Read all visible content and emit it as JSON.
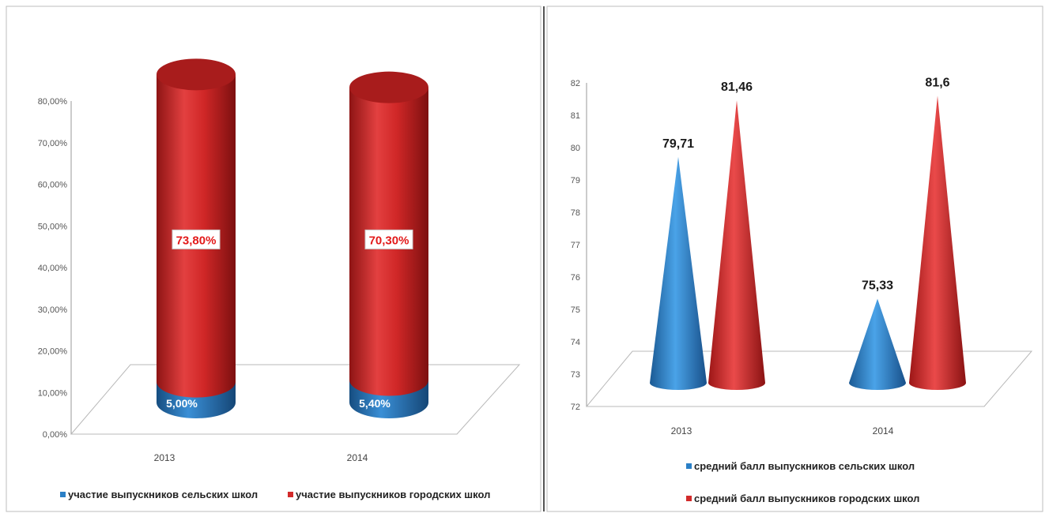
{
  "colors": {
    "rural": "#2a7fc6",
    "urban": "#d22a2a"
  },
  "chart_data": [
    {
      "type": "bar",
      "style": "3d-cylinder",
      "categories": [
        "2013",
        "2014"
      ],
      "ylim": [
        0,
        0.8
      ],
      "yticks": [
        "0,00%",
        "10,00%",
        "20,00%",
        "30,00%",
        "40,00%",
        "50,00%",
        "60,00%",
        "70,00%",
        "80,00%"
      ],
      "series": [
        {
          "name": "участие выпускников сельских школ",
          "values": [
            0.05,
            0.054
          ],
          "labels": [
            "5,00%",
            "5,40%"
          ]
        },
        {
          "name": "участие выпускников городских школ",
          "values": [
            0.738,
            0.703
          ],
          "labels": [
            "73,80%",
            "70,30%"
          ]
        }
      ],
      "legend": "bottom",
      "grid": false
    },
    {
      "type": "bar",
      "style": "3d-cone",
      "categories": [
        "2013",
        "2014"
      ],
      "ylim": [
        72,
        82
      ],
      "yticks": [
        "72",
        "73",
        "74",
        "75",
        "76",
        "77",
        "78",
        "79",
        "80",
        "81",
        "82"
      ],
      "series": [
        {
          "name": "средний балл выпускников сельских школ",
          "values": [
            79.71,
            75.33
          ],
          "labels": [
            "79,71",
            "75,33"
          ]
        },
        {
          "name": "средний балл выпускников городских школ",
          "values": [
            81.46,
            81.6
          ],
          "labels": [
            "81,46",
            "81,6"
          ]
        }
      ],
      "legend": "bottom",
      "grid": false
    }
  ]
}
